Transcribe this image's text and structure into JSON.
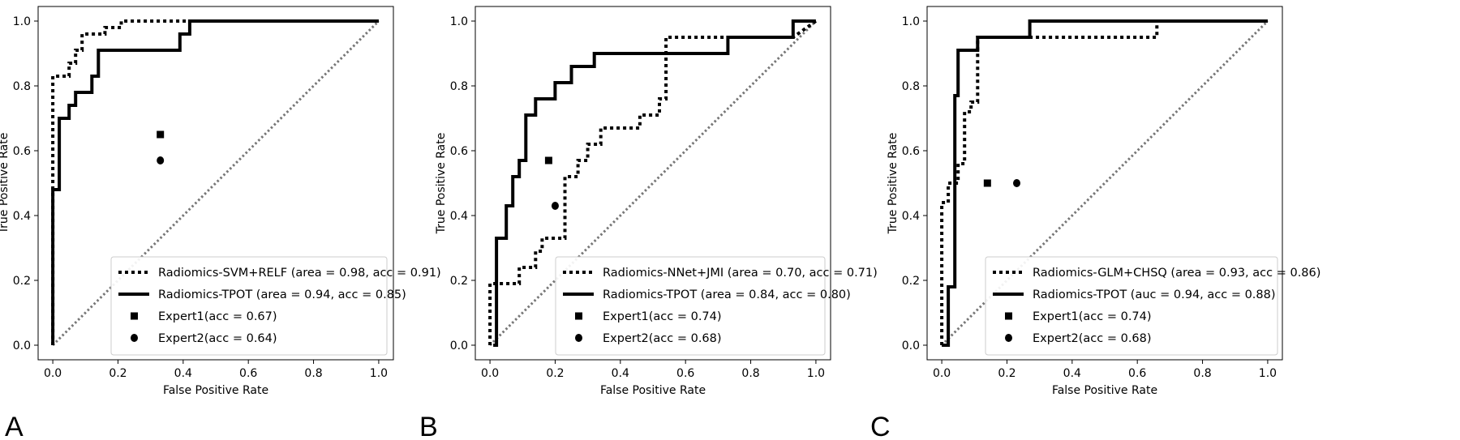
{
  "colors": {
    "diagonal": "#777777",
    "line": "#000000",
    "frame": "#000000",
    "legend_border": "#cccccc"
  },
  "chart_data": [
    {
      "type": "line",
      "panel": "A",
      "xlabel": "False Positive Rate",
      "ylabel": "True Positive Rate",
      "xlim": [
        0,
        1
      ],
      "ylim": [
        0,
        1
      ],
      "xticks": [
        "0.0",
        "0.2",
        "0.4",
        "0.6",
        "0.8",
        "1.0"
      ],
      "yticks": [
        "0.0",
        "0.2",
        "0.4",
        "0.6",
        "0.8",
        "1.0"
      ],
      "legend_position": "lower-right",
      "series": [
        {
          "name": "Radiomics-SVM+RELF (area = 0.98, acc = 0.91)",
          "style": "dotted",
          "x": [
            0,
            0,
            0.02,
            0.02,
            0.05,
            0.05,
            0.07,
            0.07,
            0.09,
            0.09,
            0.14,
            0.14,
            0.16,
            0.16,
            0.21,
            0.21,
            1.0
          ],
          "y": [
            0,
            0.83,
            0.83,
            0.83,
            0.83,
            0.87,
            0.87,
            0.91,
            0.91,
            0.96,
            0.96,
            0.96,
            0.96,
            0.98,
            0.98,
            1.0,
            1.0
          ]
        },
        {
          "name": "Radiomics-TPOT (area = 0.94, acc = 0.85)",
          "style": "solid",
          "x": [
            0,
            0,
            0.02,
            0.02,
            0.05,
            0.05,
            0.07,
            0.07,
            0.12,
            0.12,
            0.14,
            0.14,
            0.39,
            0.39,
            0.42,
            0.42,
            1.0
          ],
          "y": [
            0,
            0.48,
            0.48,
            0.7,
            0.7,
            0.74,
            0.74,
            0.78,
            0.78,
            0.83,
            0.83,
            0.91,
            0.91,
            0.96,
            0.96,
            1.0,
            1.0
          ]
        }
      ],
      "points": [
        {
          "name": "Expert1(acc = 0.67)",
          "marker": "square",
          "x": 0.33,
          "y": 0.65
        },
        {
          "name": "Expert2(acc = 0.64)",
          "marker": "circle",
          "x": 0.33,
          "y": 0.57
        }
      ]
    },
    {
      "type": "line",
      "panel": "B",
      "xlabel": "False Positive Rate",
      "ylabel": "True Positive Rate",
      "xlim": [
        0,
        1
      ],
      "ylim": [
        0,
        1
      ],
      "xticks": [
        "0.0",
        "0.2",
        "0.4",
        "0.6",
        "0.8",
        "1.0"
      ],
      "yticks": [
        "0.0",
        "0.2",
        "0.4",
        "0.6",
        "0.8",
        "1.0"
      ],
      "legend_position": "lower-right",
      "series": [
        {
          "name": "Radiomics-NNet+JMI (area = 0.70, acc = 0.71)",
          "style": "dotted",
          "x": [
            0,
            0,
            0.02,
            0.02,
            0.09,
            0.09,
            0.11,
            0.11,
            0.14,
            0.14,
            0.16,
            0.16,
            0.21,
            0.21,
            0.23,
            0.23,
            0.25,
            0.25,
            0.27,
            0.27,
            0.3,
            0.3,
            0.34,
            0.34,
            0.43,
            0.43,
            0.46,
            0.46,
            0.52,
            0.52,
            0.54,
            0.54,
            0.93,
            0.93,
            1.0
          ],
          "y": [
            0,
            0.19,
            0.19,
            0.19,
            0.19,
            0.24,
            0.24,
            0.24,
            0.24,
            0.29,
            0.29,
            0.33,
            0.33,
            0.33,
            0.33,
            0.52,
            0.52,
            0.52,
            0.52,
            0.57,
            0.57,
            0.62,
            0.62,
            0.67,
            0.67,
            0.67,
            0.67,
            0.71,
            0.71,
            0.76,
            0.76,
            0.95,
            0.95,
            0.95,
            1.0
          ]
        },
        {
          "name": "Radiomics-TPOT (area = 0.84, acc = 0.80)",
          "style": "solid",
          "x": [
            0.01,
            0.02,
            0.02,
            0.05,
            0.05,
            0.07,
            0.07,
            0.09,
            0.09,
            0.11,
            0.11,
            0.14,
            0.14,
            0.16,
            0.16,
            0.2,
            0.2,
            0.25,
            0.25,
            0.27,
            0.27,
            0.32,
            0.32,
            0.73,
            0.73,
            0.93,
            0.93,
            1.0,
            1.0
          ],
          "y": [
            0.0,
            0.0,
            0.33,
            0.33,
            0.43,
            0.43,
            0.52,
            0.52,
            0.57,
            0.57,
            0.71,
            0.71,
            0.76,
            0.76,
            0.76,
            0.76,
            0.81,
            0.81,
            0.86,
            0.86,
            0.86,
            0.86,
            0.9,
            0.9,
            0.95,
            0.95,
            1.0,
            1.0,
            1.0
          ]
        }
      ],
      "points": [
        {
          "name": "Expert1(acc = 0.74)",
          "marker": "square",
          "x": 0.18,
          "y": 0.57
        },
        {
          "name": "Expert2(acc = 0.68)",
          "marker": "circle",
          "x": 0.2,
          "y": 0.43
        }
      ]
    },
    {
      "type": "line",
      "panel": "C",
      "xlabel": "False Positive Rate",
      "ylabel": "True Positive Rate",
      "xlim": [
        0,
        1
      ],
      "ylim": [
        0,
        1
      ],
      "xticks": [
        "0.0",
        "0.2",
        "0.4",
        "0.6",
        "0.8",
        "1.0"
      ],
      "yticks": [
        "0.0",
        "0.2",
        "0.4",
        "0.6",
        "0.8",
        "1.0"
      ],
      "legend_position": "lower-right",
      "series": [
        {
          "name": "Radiomics-GLM+CHSQ (area = 0.93, acc = 0.86)",
          "style": "dotted",
          "x": [
            0,
            0,
            0.02,
            0.02,
            0.05,
            0.05,
            0.07,
            0.07,
            0.09,
            0.09,
            0.11,
            0.11,
            0.66,
            0.66,
            1.0
          ],
          "y": [
            0,
            0.44,
            0.44,
            0.5,
            0.5,
            0.56,
            0.56,
            0.72,
            0.72,
            0.75,
            0.75,
            0.95,
            0.95,
            1.0,
            1.0
          ]
        },
        {
          "name": "Radiomics-TPOT (auc = 0.94, acc = 0.88)",
          "style": "solid",
          "x": [
            0,
            0.02,
            0.02,
            0.04,
            0.04,
            0.05,
            0.05,
            0.09,
            0.09,
            0.11,
            0.11,
            0.27,
            0.27,
            1.0
          ],
          "y": [
            0,
            0,
            0.18,
            0.18,
            0.77,
            0.77,
            0.91,
            0.91,
            0.91,
            0.91,
            0.95,
            0.95,
            1.0,
            1.0
          ]
        }
      ],
      "points": [
        {
          "name": "Expert1(acc = 0.74)",
          "marker": "square",
          "x": 0.14,
          "y": 0.5
        },
        {
          "name": "Expert2(acc = 0.68)",
          "marker": "circle",
          "x": 0.23,
          "y": 0.5
        }
      ]
    }
  ]
}
